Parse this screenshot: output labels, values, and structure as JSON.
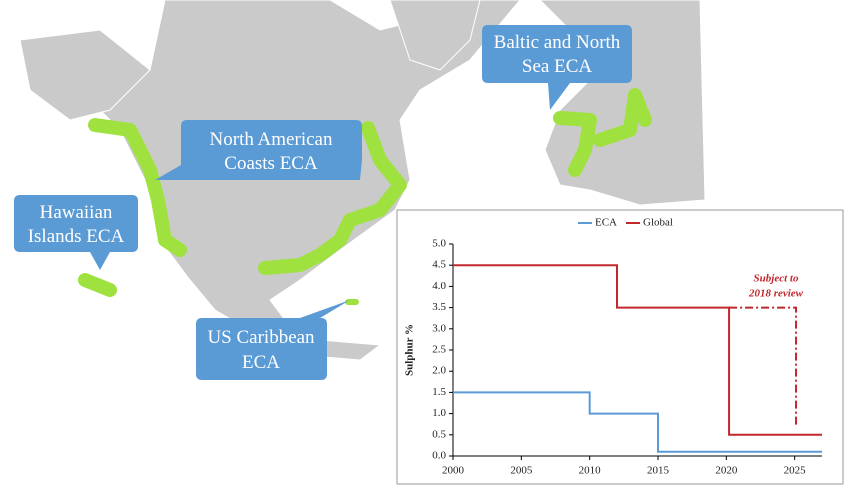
{
  "callouts": [
    {
      "lines": [
        "Baltic and North",
        "Sea ECA"
      ]
    },
    {
      "lines": [
        "North American",
        "Coasts ECA"
      ]
    },
    {
      "lines": [
        "Hawaiian",
        "Islands ECA"
      ]
    },
    {
      "lines": [
        "US Caribbean",
        "ECA"
      ]
    }
  ],
  "chart_data": {
    "type": "line",
    "ylabel": "Sulphur %",
    "annotation": [
      "Subject to",
      "2018 review"
    ],
    "xlim": [
      2000,
      2027
    ],
    "xticks": [
      2000,
      2005,
      2010,
      2015,
      2020,
      2025
    ],
    "ylim": [
      0,
      5
    ],
    "yticks": [
      {
        "value": 0,
        "label": "0.0"
      },
      {
        "value": 0.5,
        "label": "0.5"
      },
      {
        "value": 1,
        "label": "1.0"
      },
      {
        "value": 1.5,
        "label": "1.5"
      },
      {
        "value": 2,
        "label": "2.0"
      },
      {
        "value": 2.5,
        "label": "2.5"
      },
      {
        "value": 3,
        "label": "3.0"
      },
      {
        "value": 3.5,
        "label": "3.5"
      },
      {
        "value": 4,
        "label": "4.0"
      },
      {
        "value": 4.5,
        "label": "4.5"
      },
      {
        "value": 5,
        "label": "5.0"
      }
    ],
    "grid": false,
    "legend": "top",
    "series": [
      {
        "name": "ECA",
        "color": "#5b9bd5",
        "x": [
          2000,
          2010,
          2010,
          2015,
          2015,
          2027
        ],
        "values": [
          1.5,
          1.5,
          1.0,
          1.0,
          0.1,
          0.1
        ]
      },
      {
        "name": "Global",
        "color": "#c0282d",
        "x": [
          2000,
          2012,
          2012,
          2020.2,
          2020.2,
          2027
        ],
        "values": [
          4.5,
          4.5,
          3.5,
          3.5,
          0.5,
          0.5
        ]
      },
      {
        "color": "#c0282d",
        "style": "dash-dot",
        "x": [
          2020.2,
          2025.1,
          2025.1
        ],
        "values": [
          3.5,
          3.5,
          0.7
        ]
      }
    ]
  }
}
